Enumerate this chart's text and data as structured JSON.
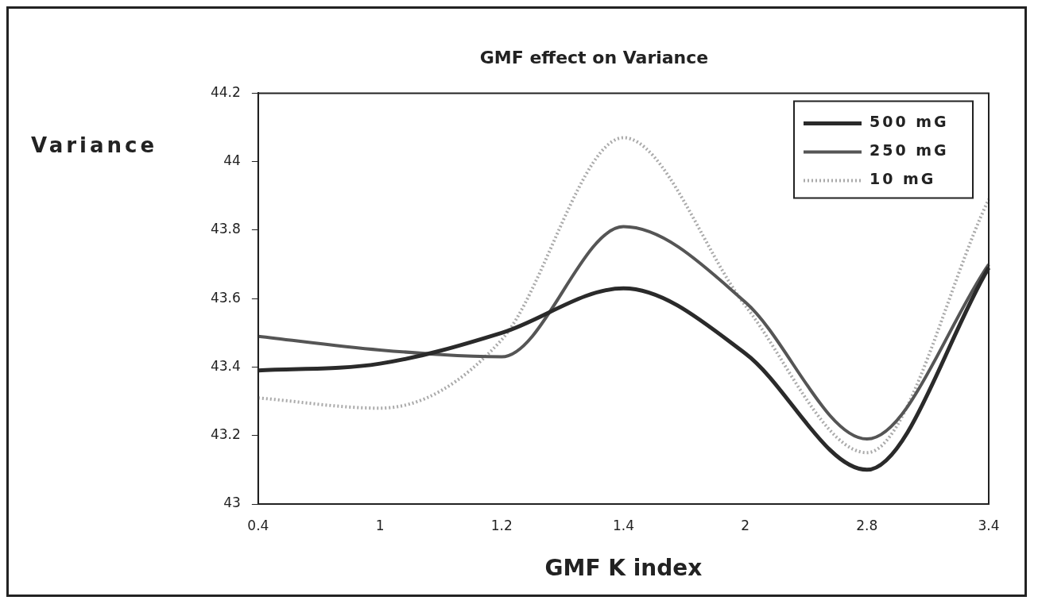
{
  "chart_data": {
    "type": "line",
    "title": "GMF effect on Variance",
    "xlabel": "GMF K index",
    "ylabel": "Variance",
    "categories": [
      "0.4",
      "1",
      "1.2",
      "1.4",
      "2",
      "2.8",
      "3.4"
    ],
    "series": [
      {
        "name": "500 mG",
        "color": "#2a2a2a",
        "values": [
          43.39,
          43.41,
          43.5,
          43.63,
          43.44,
          43.1,
          43.69
        ]
      },
      {
        "name": "250 mG",
        "color": "#555555",
        "values": [
          43.49,
          43.45,
          43.43,
          43.81,
          43.59,
          43.19,
          43.7
        ]
      },
      {
        "name": "10 mG",
        "color": "#aaaaaa",
        "line_style": "dotted",
        "values": [
          43.31,
          43.28,
          43.48,
          44.07,
          43.58,
          43.15,
          43.89
        ]
      }
    ],
    "ylim": [
      43,
      44.2
    ],
    "yticks": [
      43,
      43.2,
      43.4,
      43.6,
      43.8,
      44,
      44.2
    ],
    "grid": false,
    "legend": "top right",
    "marker": "none"
  }
}
